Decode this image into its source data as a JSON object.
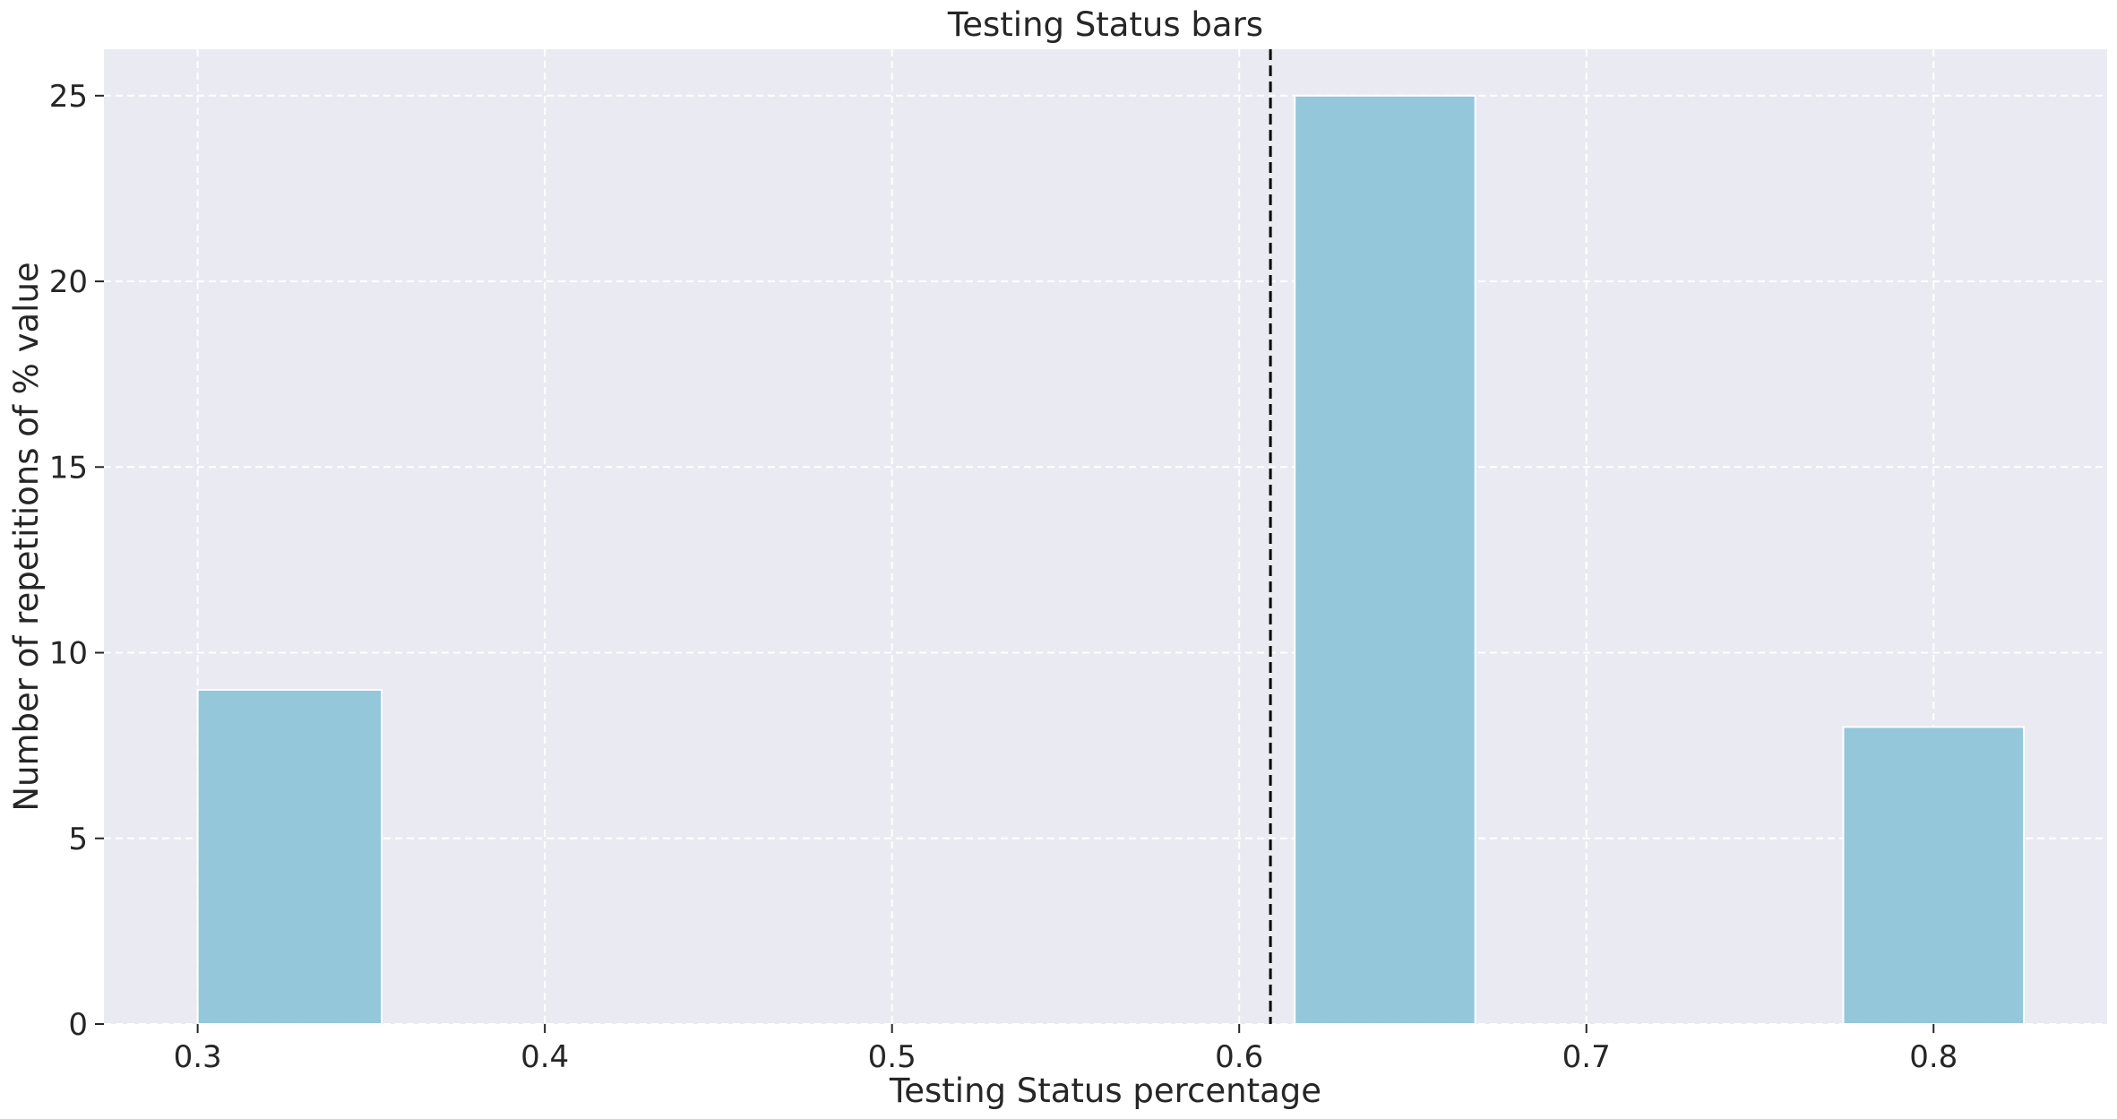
{
  "chart_data": {
    "type": "bar",
    "title": "Testing Status bars",
    "xlabel": "Testing Status percentage",
    "ylabel": "Number of repetitions of % value",
    "xlim": [
      0.273,
      0.85
    ],
    "ylim": [
      0,
      26.25
    ],
    "xticks": [
      0.3,
      0.4,
      0.5,
      0.6,
      0.7,
      0.8
    ],
    "xtick_labels": [
      "0.3",
      "0.4",
      "0.5",
      "0.6",
      "0.7",
      "0.8"
    ],
    "yticks": [
      0,
      5,
      10,
      15,
      20,
      25
    ],
    "ytick_labels": [
      "0",
      "5",
      "10",
      "15",
      "20",
      "25"
    ],
    "grid": true,
    "bins": [
      {
        "x0": 0.3,
        "x1": 0.353,
        "count": 9
      },
      {
        "x0": 0.616,
        "x1": 0.668,
        "count": 25
      },
      {
        "x0": 0.774,
        "x1": 0.826,
        "count": 8
      }
    ],
    "reference_line": {
      "x": 0.609,
      "style": "dashed"
    },
    "colors": {
      "bar": "#8fc6d8",
      "background": "#eaeaf2",
      "reference_line": "#000000"
    }
  }
}
